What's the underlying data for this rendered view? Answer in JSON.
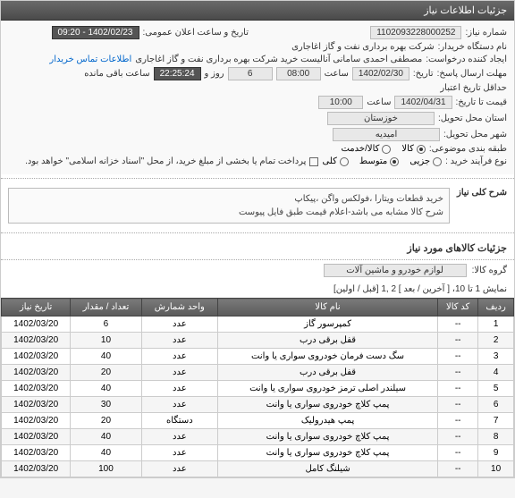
{
  "header": {
    "title": "جزئیات اطلاعات نیاز"
  },
  "info": {
    "need_no_label": "شماره نیاز:",
    "need_no": "1102093228000252",
    "announce_label": "تاریخ و ساعت اعلان عمومی:",
    "announce_date": "1402/02/23 - 09:20",
    "buyer_label": "نام دستگاه خریدار:",
    "buyer": "شرکت بهره برداری نفت و گاز اغاجاری",
    "creator_label": "ایجاد کننده درخواست:",
    "creator": "مصطفی احمدی سامانی آنالیست خرید شرکت بهره برداری نفت و گاز اغاجاری",
    "contact_link": "اطلاعات تماس خریدار",
    "deadline_label": "مهلت ارسال پاسخ:",
    "deadline_tolabel": "تاریخ:",
    "deadline_date": "1402/02/30",
    "deadline_time_label": "ساعت",
    "deadline_time": "08:00",
    "days_label": "روز و",
    "days_value": "6",
    "remain_label": "ساعت باقی مانده",
    "remain_time": "22:25:24",
    "credit_label": "حداقل تاریخ اعتبار",
    "credit_label2": "قیمت تا تاریخ:",
    "credit_date": "1402/04/31",
    "credit_time_label": "ساعت",
    "credit_time": "10:00",
    "province_label": "استان محل تحویل:",
    "province": "خوزستان",
    "city_label": "شهر محل تحویل:",
    "city": "امیدیه",
    "classify_label": "طبقه بندی موضوعی:",
    "type_label": "نوع فرآیند خرید :",
    "pay_note": "پرداخت تمام یا بخشی از مبلغ خرید، از محل \"اسناد خزانه اسلامی\" خواهد بود.",
    "goods_service": {
      "goods": "کالا",
      "service": "کالا/خدمت"
    },
    "priority": {
      "a": "جزیی",
      "b": "متوسط",
      "c": "کلی"
    }
  },
  "desc": {
    "label": "شرح کلی نیاز",
    "line1": "خرید قطعات ویتارا ،فولکس واگن ،پیکاپ",
    "line2": "شرح کالا مشابه می باشد-اعلام قیمت طبق فایل پیوست"
  },
  "items": {
    "section_title": "جزئیات کالاهای مورد نیاز",
    "group_label": "گروه کالا:",
    "group_value": "لوازم خودرو و ماشین آلات",
    "pager_text": "نمایش 1 تا 10، [ آخرین / بعد ] 2 ,1 [قبل / اولین]",
    "columns": [
      "ردیف",
      "کد کالا",
      "نام کالا",
      "واحد شمارش",
      "تعداد / مقدار",
      "تاریخ نیاز"
    ],
    "rows": [
      [
        "1",
        "--",
        "کمپرسور گاز",
        "عدد",
        "6",
        "1402/03/20"
      ],
      [
        "2",
        "--",
        "قفل برقی درب",
        "عدد",
        "10",
        "1402/03/20"
      ],
      [
        "3",
        "--",
        "سگ دست فرمان خودروی سواری یا وانت",
        "عدد",
        "40",
        "1402/03/20"
      ],
      [
        "4",
        "--",
        "قفل برقی درب",
        "عدد",
        "20",
        "1402/03/20"
      ],
      [
        "5",
        "--",
        "سیلندر اصلی ترمز خودروی سواری یا وانت",
        "عدد",
        "40",
        "1402/03/20"
      ],
      [
        "6",
        "--",
        "پمپ کلاچ خودروی سواری یا وانت",
        "عدد",
        "30",
        "1402/03/20"
      ],
      [
        "7",
        "--",
        "پمپ هیدرولیک",
        "دستگاه",
        "20",
        "1402/03/20"
      ],
      [
        "8",
        "--",
        "پمپ کلاچ خودروی سواری یا وانت",
        "عدد",
        "40",
        "1402/03/20"
      ],
      [
        "9",
        "--",
        "پمپ کلاچ خودروی سواری یا وانت",
        "عدد",
        "40",
        "1402/03/20"
      ],
      [
        "10",
        "--",
        "شیلنگ کامل",
        "عدد",
        "100",
        "1402/03/20"
      ]
    ]
  }
}
